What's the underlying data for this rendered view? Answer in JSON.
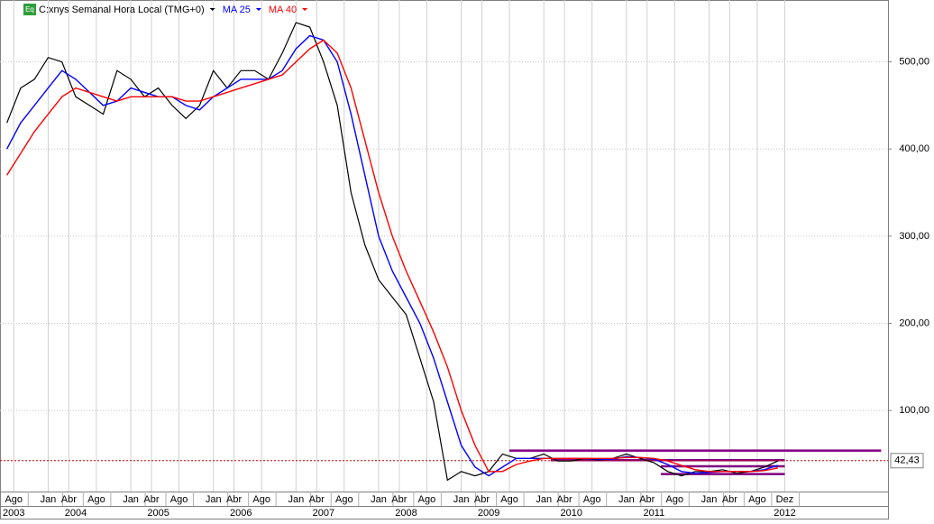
{
  "chart_data": {
    "type": "line",
    "badge": "Eq",
    "xlim": [
      "2003-06",
      "2014-03"
    ],
    "ylim": [
      7,
      571
    ],
    "yticks": [
      {
        "value": 100,
        "label": "100,00"
      },
      {
        "value": 200,
        "label": "200,00"
      },
      {
        "value": 300,
        "label": "300,00"
      },
      {
        "value": 400,
        "label": "400,00"
      },
      {
        "value": 500,
        "label": "500,00"
      }
    ],
    "xticks": [
      {
        "value": "2003-08",
        "label": "Ago"
      },
      {
        "value": "2004-01",
        "label": "Jan"
      },
      {
        "value": "2004-04",
        "label": "Abr"
      },
      {
        "value": "2004-08",
        "label": "Ago"
      },
      {
        "value": "2005-01",
        "label": "Jan"
      },
      {
        "value": "2005-04",
        "label": "Abr"
      },
      {
        "value": "2005-08",
        "label": "Ago"
      },
      {
        "value": "2006-01",
        "label": "Jan"
      },
      {
        "value": "2006-04",
        "label": "Abr"
      },
      {
        "value": "2006-08",
        "label": "Ago"
      },
      {
        "value": "2007-01",
        "label": "Jan"
      },
      {
        "value": "2007-04",
        "label": "Abr"
      },
      {
        "value": "2007-08",
        "label": "Ago"
      },
      {
        "value": "2008-01",
        "label": "Jan"
      },
      {
        "value": "2008-04",
        "label": "Abr"
      },
      {
        "value": "2008-08",
        "label": "Ago"
      },
      {
        "value": "2009-01",
        "label": "Jan"
      },
      {
        "value": "2009-04",
        "label": "Abr"
      },
      {
        "value": "2009-08",
        "label": "Ago"
      },
      {
        "value": "2010-01",
        "label": "Jan"
      },
      {
        "value": "2010-04",
        "label": "Abr"
      },
      {
        "value": "2010-08",
        "label": "Ago"
      },
      {
        "value": "2011-01",
        "label": "Jan"
      },
      {
        "value": "2011-04",
        "label": "Abr"
      },
      {
        "value": "2011-08",
        "label": "Ago"
      },
      {
        "value": "2012-01",
        "label": "Jan"
      },
      {
        "value": "2012-04",
        "label": "Abr"
      },
      {
        "value": "2012-08",
        "label": "Ago"
      },
      {
        "value": "2012-12",
        "label": "Dez"
      }
    ],
    "year_ticks": [
      {
        "value": "2003-08",
        "label": "2003"
      },
      {
        "value": "2004-05",
        "label": "2004"
      },
      {
        "value": "2005-05",
        "label": "2005"
      },
      {
        "value": "2006-05",
        "label": "2006"
      },
      {
        "value": "2007-05",
        "label": "2007"
      },
      {
        "value": "2008-05",
        "label": "2008"
      },
      {
        "value": "2009-05",
        "label": "2009"
      },
      {
        "value": "2010-05",
        "label": "2010"
      },
      {
        "value": "2011-05",
        "label": "2011"
      },
      {
        "value": "2012-12",
        "label": "2012"
      }
    ],
    "x": [
      "2003-07",
      "2003-09",
      "2003-11",
      "2004-01",
      "2004-03",
      "2004-05",
      "2004-07",
      "2004-09",
      "2004-11",
      "2005-01",
      "2005-03",
      "2005-05",
      "2005-07",
      "2005-09",
      "2005-11",
      "2006-01",
      "2006-03",
      "2006-05",
      "2006-07",
      "2006-09",
      "2006-11",
      "2007-01",
      "2007-03",
      "2007-05",
      "2007-07",
      "2007-09",
      "2007-11",
      "2008-01",
      "2008-03",
      "2008-05",
      "2008-07",
      "2008-09",
      "2008-11",
      "2009-01",
      "2009-03",
      "2009-05",
      "2009-07",
      "2009-09",
      "2009-11",
      "2010-01",
      "2010-03",
      "2010-05",
      "2010-07",
      "2010-09",
      "2010-11",
      "2011-01",
      "2011-03",
      "2011-05",
      "2011-07",
      "2011-09",
      "2011-11",
      "2012-01",
      "2012-03",
      "2012-05",
      "2012-07",
      "2012-09",
      "2012-11"
    ],
    "series": [
      {
        "name": "C:xnys Semanal Hora Local (TMG+0)",
        "color": "#000000",
        "values": [
          430,
          470,
          480,
          505,
          500,
          460,
          450,
          440,
          490,
          480,
          460,
          470,
          450,
          435,
          450,
          490,
          470,
          490,
          490,
          480,
          510,
          545,
          540,
          500,
          450,
          350,
          290,
          250,
          230,
          210,
          160,
          110,
          20,
          30,
          25,
          30,
          50,
          45,
          45,
          50,
          42,
          42,
          45,
          43,
          45,
          50,
          45,
          40,
          30,
          25,
          30,
          30,
          32,
          28,
          30,
          35,
          42
        ]
      },
      {
        "name": "MA 25",
        "color": "#0000ff",
        "values": [
          400,
          430,
          450,
          470,
          490,
          480,
          465,
          450,
          455,
          470,
          465,
          460,
          460,
          450,
          445,
          460,
          470,
          480,
          480,
          480,
          490,
          515,
          530,
          525,
          500,
          440,
          370,
          300,
          260,
          230,
          200,
          160,
          110,
          60,
          35,
          25,
          35,
          45,
          45,
          45,
          45,
          45,
          45,
          44,
          44,
          47,
          46,
          44,
          38,
          30,
          28,
          29,
          30,
          30,
          30,
          32,
          37
        ]
      },
      {
        "name": "MA 40",
        "color": "#ff0000",
        "values": [
          370,
          395,
          420,
          440,
          460,
          470,
          465,
          460,
          455,
          460,
          460,
          460,
          460,
          455,
          455,
          460,
          465,
          470,
          475,
          480,
          485,
          500,
          515,
          525,
          510,
          470,
          410,
          350,
          300,
          260,
          225,
          190,
          150,
          100,
          60,
          30,
          30,
          38,
          42,
          45,
          45,
          45,
          45,
          45,
          45,
          46,
          46,
          45,
          42,
          37,
          32,
          30,
          30,
          30,
          30,
          31,
          34
        ]
      }
    ],
    "hlines": [
      {
        "value": 54,
        "from": "2009-08",
        "to": "2014-02",
        "color": "#800080"
      },
      {
        "value": 43,
        "from": "2010-02",
        "to": "2012-12",
        "color": "#800080"
      },
      {
        "value": 36,
        "from": "2011-06",
        "to": "2012-12",
        "color": "#800080"
      },
      {
        "value": 27,
        "from": "2011-06",
        "to": "2012-12",
        "color": "#800080"
      }
    ],
    "last_value": {
      "value": 42.43,
      "label": "42,43",
      "color": "#cc0000"
    }
  }
}
